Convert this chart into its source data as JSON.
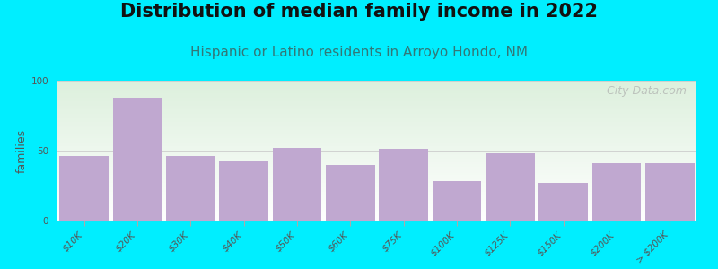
{
  "title": "Distribution of median family income in 2022",
  "subtitle": "Hispanic or Latino residents in Arroyo Hondo, NM",
  "ylabel": "families",
  "categories": [
    "$10K",
    "$20K",
    "$30K",
    "$40K",
    "$50K",
    "$60K",
    "$75K",
    "$100K",
    "$125K",
    "$150K",
    "$200K",
    "> $200K"
  ],
  "values": [
    46,
    88,
    46,
    43,
    52,
    40,
    51,
    28,
    48,
    27,
    41,
    41
  ],
  "bar_color": "#c0a8d0",
  "background_outer": "#00eeff",
  "background_inner_top": "#ddf0dd",
  "background_inner_bottom": "#ffffff",
  "ylim": [
    0,
    100
  ],
  "yticks": [
    0,
    50,
    100
  ],
  "title_fontsize": 15,
  "subtitle_fontsize": 11,
  "ylabel_fontsize": 9,
  "tick_fontsize": 7.5,
  "watermark": "   City-Data.com",
  "watermark_fontsize": 9,
  "title_color": "#111111",
  "subtitle_color": "#337777",
  "tick_color": "#555555",
  "ylabel_color": "#555555"
}
